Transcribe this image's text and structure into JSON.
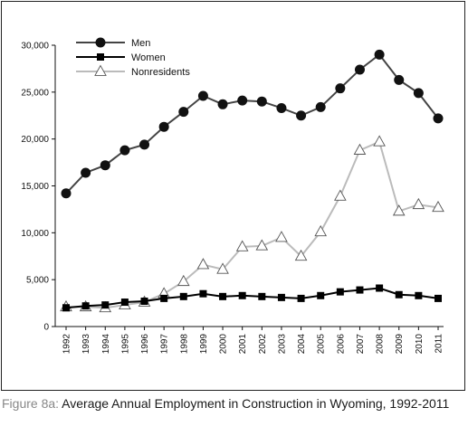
{
  "chart_data": {
    "type": "line",
    "x": [
      "1992",
      "1993",
      "1994",
      "1995",
      "1996",
      "1997",
      "1998",
      "1999",
      "2000",
      "2001",
      "2002",
      "2003",
      "2004",
      "2005",
      "2006",
      "2007",
      "2008",
      "2009",
      "2010",
      "2011"
    ],
    "series": [
      {
        "name": "Men",
        "color": "#444444",
        "marker": "circle",
        "values": [
          14200,
          16400,
          17200,
          18800,
          19400,
          21300,
          22900,
          24600,
          23700,
          24100,
          24000,
          23300,
          22500,
          23400,
          25400,
          27400,
          29000,
          26300,
          24900,
          22200
        ]
      },
      {
        "name": "Women",
        "color": "#000000",
        "marker": "square",
        "values": [
          2000,
          2200,
          2300,
          2600,
          2700,
          3000,
          3200,
          3500,
          3200,
          3300,
          3200,
          3100,
          3000,
          3300,
          3700,
          3900,
          4100,
          3400,
          3300,
          3000
        ]
      },
      {
        "name": "Nonresidents",
        "color": "#bbbbbb",
        "marker": "triangle",
        "values": [
          2100,
          2100,
          2000,
          2300,
          2600,
          3500,
          4800,
          6600,
          6100,
          8500,
          8600,
          9500,
          7500,
          10100,
          13900,
          18800,
          19700,
          12300,
          13000,
          12700
        ]
      }
    ],
    "yticks": [
      "0",
      "5,000",
      "10,000",
      "15,000",
      "20,000",
      "25,000",
      "30,000"
    ],
    "ylim": [
      0,
      30000
    ],
    "legend": "top-left",
    "grid": false
  },
  "caption": {
    "label": "Figure 8a:",
    "text": "Average Annual Employment in Construction in Wyoming, 1992-2011"
  }
}
